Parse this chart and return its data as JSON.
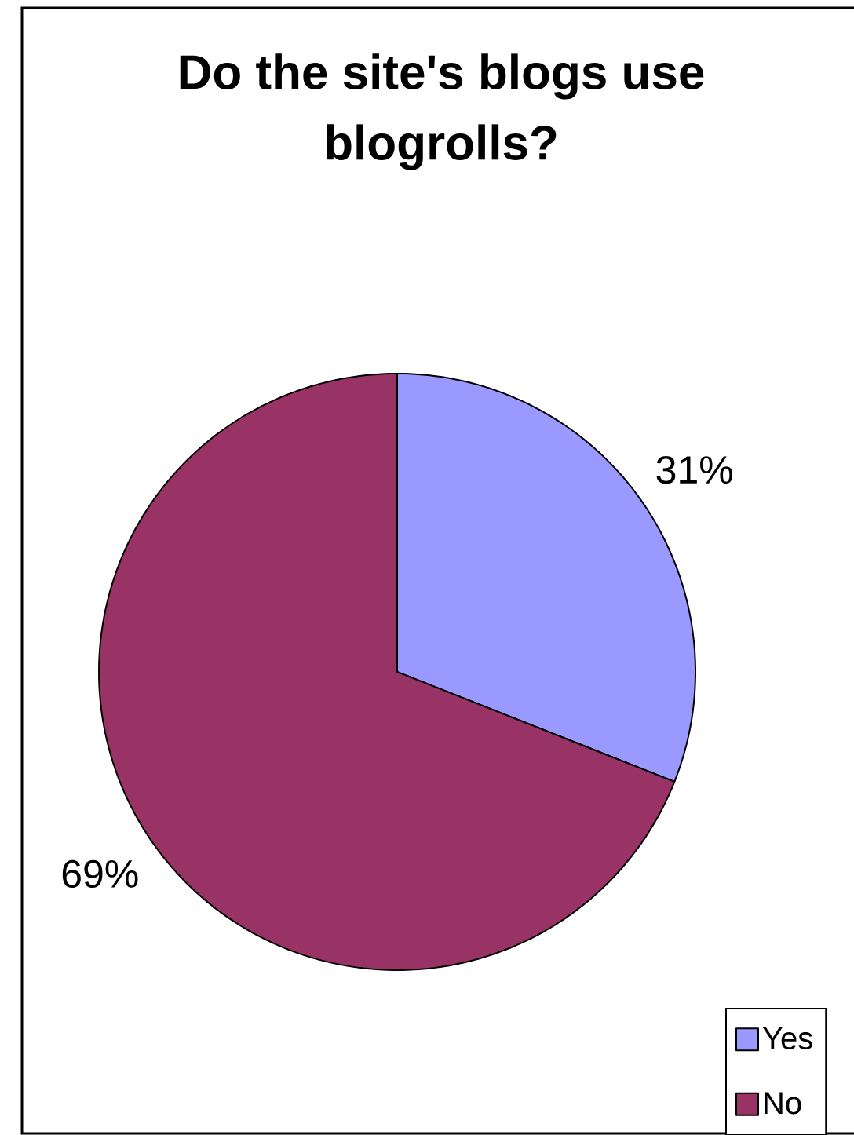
{
  "chart_data": {
    "type": "pie",
    "title": "Do the site's blogs use blogrolls?",
    "categories": [
      "Yes",
      "No"
    ],
    "values": [
      31,
      69
    ],
    "colors": [
      "#9999ff",
      "#993366"
    ],
    "value_labels": [
      "31%",
      "69%"
    ],
    "legend": "bottom right"
  }
}
